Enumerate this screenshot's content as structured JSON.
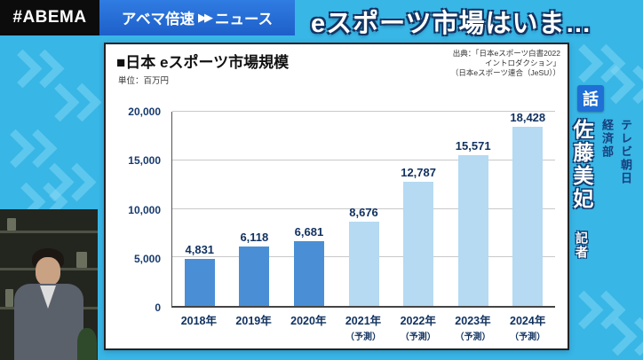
{
  "header": {
    "brand": "#ABEMA",
    "program_left": "アベマ倍速",
    "fast_forward_glyph": "▶▶",
    "program_right": "ニュース",
    "headline": "eスポーツ市場はいま…"
  },
  "chart_panel": {
    "title": "■日本 eスポーツ市場規模",
    "unit": "単位：百万円",
    "source_lines": [
      "出典：「日本eスポーツ白書2022",
      "イントロダクション」",
      "（日本eスポーツ連合（JeSU））"
    ]
  },
  "chart_data": {
    "type": "bar",
    "title": "日本 eスポーツ市場規模",
    "unit_label": "単位：百万円",
    "categories": [
      "2018年",
      "2019年",
      "2020年",
      "2021年",
      "2022年",
      "2023年",
      "2024年"
    ],
    "category_notes": [
      "",
      "",
      "",
      "（予測）",
      "（予測）",
      "（予測）",
      "（予測）"
    ],
    "values": [
      4831,
      6118,
      6681,
      8676,
      12787,
      15571,
      18428
    ],
    "value_labels": [
      "4,831",
      "6,118",
      "6,681",
      "8,676",
      "12,787",
      "15,571",
      "18,428"
    ],
    "forecast_flags": [
      false,
      false,
      false,
      true,
      true,
      true,
      true
    ],
    "ylim": [
      0,
      20000
    ],
    "yticks": [
      "0",
      "5,000",
      "10,000",
      "15,000",
      "20,000"
    ],
    "grid": true,
    "legend_position": "none",
    "colors": {
      "actual": "#4a8fd5",
      "forecast": "#b5daf2"
    }
  },
  "reporter_tag": {
    "badge": "話",
    "affiliation_lines": [
      "テレビ朝日",
      "経済部"
    ],
    "name": "佐藤美妃",
    "title": "記者"
  }
}
